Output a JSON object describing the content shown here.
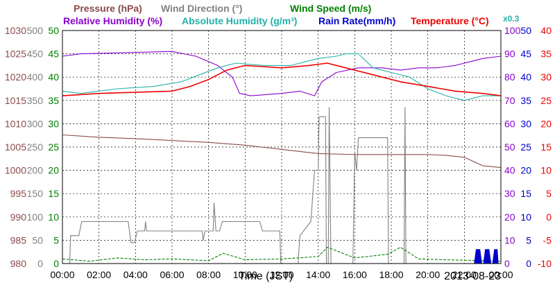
{
  "chart_data": {
    "type": "line",
    "date": "2013-08-23",
    "xlabel": "Time (JST)",
    "x_ticks": [
      "00:00",
      "02:00",
      "04:00",
      "06:00",
      "08:00",
      "10:00",
      "12:00",
      "14:00",
      "16:00",
      "18:00",
      "20:00",
      "22:00",
      "00:00"
    ],
    "x_range_hours": [
      0,
      24
    ],
    "grid": true,
    "legend": {
      "pressure": "Pressure (hPa)",
      "wind_direction": "Wind Direction (°)",
      "wind_speed": "Wind Speed (m/s)",
      "relative_humidity": "Relative Humidity (%)",
      "absolute_humidity": "Absolute Humidity (g/m³)",
      "rain_rate": "Rain Rate(mm/h)",
      "temperature": "Temperature (°C)",
      "abs_humidity_scale_note": "x0.3"
    },
    "axes": {
      "pressure": {
        "range": [
          980,
          1030
        ],
        "ticks": [
          "1030",
          "1025",
          "1020",
          "1015",
          "1010",
          "1005",
          "1000",
          "995",
          "990",
          "985",
          "980"
        ]
      },
      "wind_direction": {
        "range": [
          0,
          500
        ],
        "ticks": [
          "500",
          "450",
          "400",
          "350",
          "300",
          "250",
          "200",
          "150",
          "100",
          "50",
          "0"
        ]
      },
      "wind_speed": {
        "range": [
          0,
          50
        ],
        "ticks": [
          "50",
          "45",
          "40",
          "35",
          "30",
          "25",
          "20",
          "15",
          "10",
          "5",
          "0"
        ]
      },
      "relative_humidity": {
        "range": [
          0,
          100
        ],
        "ticks": [
          "100",
          "90",
          "80",
          "70",
          "60",
          "50",
          "40",
          "30",
          "20",
          "10",
          "0"
        ]
      },
      "rain_rate": {
        "range": [
          0,
          50
        ],
        "ticks": [
          "50",
          "45",
          "40",
          "35",
          "30",
          "25",
          "20",
          "15",
          "10",
          "5",
          "0"
        ]
      },
      "temperature": {
        "range": [
          -10,
          40
        ],
        "ticks": [
          "40",
          "35",
          "30",
          "25",
          "20",
          "15",
          "10",
          "5",
          "0",
          "-5",
          "-10"
        ]
      }
    },
    "colors": {
      "pressure": "#8b4a4a",
      "wind_direction": "#808080",
      "wind_speed": "#008000",
      "relative_humidity": "#8800cc",
      "absolute_humidity": "#20b2aa",
      "rain_rate": "#0000cc",
      "temperature": "#ee0000",
      "grid": "#000000"
    },
    "series": [
      {
        "name": "Pressure (hPa)",
        "axis": "pressure",
        "points": [
          [
            0,
            1007.6
          ],
          [
            2,
            1007.1
          ],
          [
            4,
            1006.8
          ],
          [
            6,
            1006.4
          ],
          [
            8,
            1006
          ],
          [
            10,
            1005.4
          ],
          [
            12,
            1004.5
          ],
          [
            14,
            1003.6
          ],
          [
            16,
            1003.4
          ],
          [
            18,
            1003.4
          ],
          [
            20,
            1003.4
          ],
          [
            21,
            1003.2
          ],
          [
            22,
            1002.8
          ],
          [
            23,
            1001
          ],
          [
            24,
            1000.6
          ]
        ]
      },
      {
        "name": "Wind Direction (°)",
        "axis": "wind_direction",
        "points": [
          [
            0,
            0
          ],
          [
            0.4,
            0
          ],
          [
            0.45,
            60
          ],
          [
            0.9,
            60
          ],
          [
            1.05,
            90
          ],
          [
            3.6,
            90
          ],
          [
            3.75,
            45
          ],
          [
            3.95,
            45
          ],
          [
            4.1,
            70
          ],
          [
            4.5,
            70
          ],
          [
            4.55,
            90
          ],
          [
            4.6,
            70
          ],
          [
            7.65,
            70
          ],
          [
            7.7,
            50
          ],
          [
            7.8,
            70
          ],
          [
            8.25,
            70
          ],
          [
            8.3,
            130
          ],
          [
            8.4,
            70
          ],
          [
            8.6,
            70
          ],
          [
            8.75,
            90
          ],
          [
            10.8,
            90
          ],
          [
            10.95,
            70
          ],
          [
            11.9,
            70
          ],
          [
            11.95,
            0
          ],
          [
            12.9,
            0
          ],
          [
            13.0,
            60
          ],
          [
            13.6,
            90
          ],
          [
            13.8,
            200
          ],
          [
            14.0,
            200
          ],
          [
            14.05,
            315
          ],
          [
            14.4,
            315
          ],
          [
            14.45,
            0
          ],
          [
            14.55,
            0
          ],
          [
            14.6,
            335
          ],
          [
            14.7,
            0
          ],
          [
            15.9,
            0
          ],
          [
            16.0,
            240
          ],
          [
            16.1,
            200
          ],
          [
            16.2,
            270
          ],
          [
            17.8,
            270
          ],
          [
            17.85,
            0
          ],
          [
            18.7,
            0
          ],
          [
            18.75,
            335
          ],
          [
            18.8,
            0
          ],
          [
            24,
            0
          ]
        ]
      },
      {
        "name": "Wind Speed (m/s)",
        "axis": "wind_speed",
        "points": [
          [
            0,
            1.0
          ],
          [
            1.5,
            0.5
          ],
          [
            3,
            1.2
          ],
          [
            4.5,
            0.8
          ],
          [
            6,
            1.0
          ],
          [
            8,
            0.6
          ],
          [
            8.8,
            2.2
          ],
          [
            10,
            0.8
          ],
          [
            12,
            1.0
          ],
          [
            14,
            1.5
          ],
          [
            14.5,
            3.5
          ],
          [
            16,
            1.2
          ],
          [
            17.8,
            2.0
          ],
          [
            18.5,
            3.5
          ],
          [
            19.5,
            1.0
          ],
          [
            21,
            0.8
          ],
          [
            24,
            0.5
          ]
        ]
      },
      {
        "name": "Relative Humidity (%)",
        "axis": "relative_humidity",
        "points": [
          [
            0,
            89
          ],
          [
            1,
            90
          ],
          [
            6,
            91
          ],
          [
            7.3,
            89
          ],
          [
            8.5,
            85
          ],
          [
            9.3,
            80
          ],
          [
            9.7,
            73
          ],
          [
            10.3,
            72
          ],
          [
            12,
            73
          ],
          [
            13,
            74
          ],
          [
            13.8,
            72
          ],
          [
            14.2,
            78
          ],
          [
            15,
            82
          ],
          [
            16.2,
            84
          ],
          [
            17.5,
            84
          ],
          [
            18.5,
            83
          ],
          [
            19.5,
            84
          ],
          [
            20.5,
            84
          ],
          [
            21.5,
            85
          ],
          [
            22.5,
            87
          ],
          [
            23,
            88
          ],
          [
            24,
            89
          ]
        ]
      },
      {
        "name": "Absolute Humidity (g/m³)",
        "axis": "temperature",
        "points": [
          [
            0,
            27
          ],
          [
            1,
            26.5
          ],
          [
            3,
            27.5
          ],
          [
            5,
            28
          ],
          [
            6.5,
            29
          ],
          [
            7.5,
            30.5
          ],
          [
            8.5,
            32
          ],
          [
            9.5,
            33
          ],
          [
            11,
            32.5
          ],
          [
            12.5,
            32.5
          ],
          [
            14,
            34
          ],
          [
            15,
            34.5
          ],
          [
            15.5,
            35
          ],
          [
            16.2,
            35
          ],
          [
            17,
            32
          ],
          [
            18,
            31
          ],
          [
            19,
            30
          ],
          [
            20,
            27.5
          ],
          [
            21,
            26
          ],
          [
            22,
            25
          ],
          [
            23,
            26
          ],
          [
            24,
            26
          ]
        ]
      },
      {
        "name": "Temperature (°C)",
        "axis": "temperature",
        "points": [
          [
            0,
            26
          ],
          [
            2,
            26.5
          ],
          [
            6,
            27
          ],
          [
            7,
            28
          ],
          [
            8,
            29.5
          ],
          [
            9,
            31.5
          ],
          [
            10,
            32.5
          ],
          [
            12,
            32
          ],
          [
            13.5,
            32.5
          ],
          [
            14.5,
            33
          ],
          [
            15.5,
            32
          ],
          [
            17,
            30.5
          ],
          [
            18.5,
            29
          ],
          [
            20,
            28
          ],
          [
            21.5,
            27
          ],
          [
            23,
            26.5
          ],
          [
            24,
            26
          ]
        ]
      },
      {
        "name": "Rain Rate(mm/h)",
        "axis": "rain_rate",
        "points": [
          [
            0,
            0
          ],
          [
            22.55,
            0
          ],
          [
            22.65,
            3
          ],
          [
            22.85,
            3
          ],
          [
            22.95,
            0
          ],
          [
            23.05,
            0
          ],
          [
            23.15,
            3
          ],
          [
            23.35,
            3
          ],
          [
            23.45,
            0
          ],
          [
            23.55,
            0
          ],
          [
            23.65,
            3
          ],
          [
            23.8,
            3
          ],
          [
            23.85,
            0
          ],
          [
            24,
            0
          ]
        ]
      }
    ]
  }
}
